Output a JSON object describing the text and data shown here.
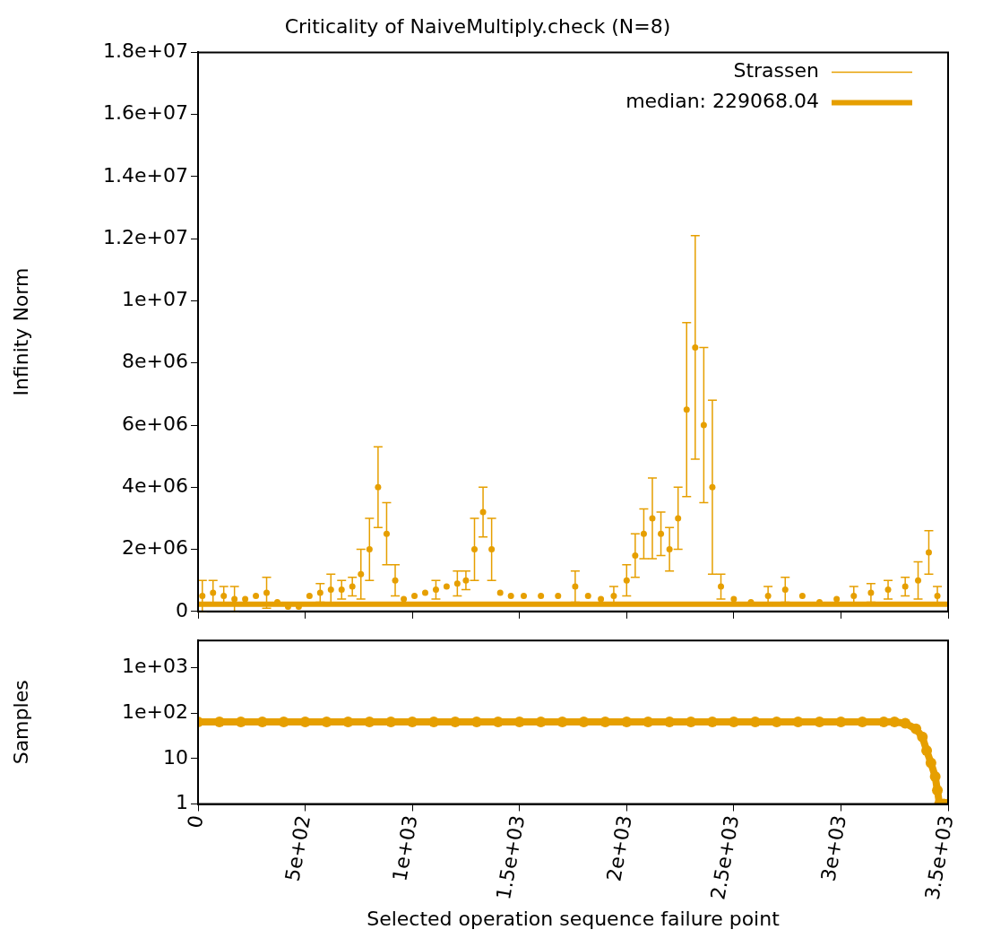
{
  "chart_data": [
    {
      "type": "scatter",
      "title": "Criticality of NaiveMultiply.check (N=8)",
      "ylabel": "Infinity Norm",
      "xlim": [
        0,
        3500
      ],
      "ylim": [
        0,
        18000000
      ],
      "xticks": [
        {
          "value": 0,
          "label": null
        },
        {
          "value": 500,
          "label": null
        },
        {
          "value": 1000,
          "label": null
        },
        {
          "value": 1500,
          "label": null
        },
        {
          "value": 2000,
          "label": null
        },
        {
          "value": 2500,
          "label": null
        },
        {
          "value": 3000,
          "label": null
        },
        {
          "value": 3500,
          "label": null
        }
      ],
      "yticks": [
        0,
        {
          "value": 2000000,
          "label": "2e+06"
        },
        {
          "value": 4000000,
          "label": "4e+06"
        },
        {
          "value": 6000000,
          "label": "6e+06"
        },
        {
          "value": 8000000,
          "label": "8e+06"
        },
        {
          "value": 10000000,
          "label": "1e+07"
        },
        {
          "value": 12000000,
          "label": "1.2e+07"
        },
        {
          "value": 14000000,
          "label": "1.4e+07"
        },
        {
          "value": 16000000,
          "label": "1.6e+07"
        },
        {
          "value": 18000000,
          "label": "1.8e+07"
        }
      ],
      "tick_labels": "y",
      "grid": false,
      "legend": "top right",
      "series": [
        {
          "name": "Strassen",
          "marker": "circle",
          "color": "#e69f00",
          "x": [
            20,
            70,
            120,
            170,
            220,
            270,
            320,
            370,
            420,
            470,
            520,
            570,
            620,
            670,
            720,
            760,
            800,
            840,
            880,
            920,
            960,
            1010,
            1060,
            1110,
            1160,
            1210,
            1250,
            1290,
            1330,
            1370,
            1410,
            1460,
            1520,
            1600,
            1680,
            1760,
            1820,
            1880,
            1940,
            2000,
            2040,
            2080,
            2120,
            2160,
            2200,
            2240,
            2280,
            2320,
            2360,
            2400,
            2440,
            2500,
            2580,
            2660,
            2740,
            2820,
            2900,
            2980,
            3060,
            3140,
            3220,
            3300,
            3360,
            3410,
            3450
          ],
          "values": [
            500000,
            600000,
            500000,
            400000,
            400000,
            500000,
            600000,
            300000,
            150000,
            150000,
            500000,
            600000,
            700000,
            700000,
            800000,
            1200000,
            2000000,
            4000000,
            2500000,
            1000000,
            400000,
            500000,
            600000,
            700000,
            800000,
            900000,
            1000000,
            2000000,
            3200000,
            2000000,
            600000,
            500000,
            500000,
            500000,
            500000,
            800000,
            500000,
            400000,
            500000,
            1000000,
            1800000,
            2500000,
            3000000,
            2500000,
            2000000,
            3000000,
            6500000,
            8500000,
            6000000,
            4000000,
            800000,
            400000,
            300000,
            500000,
            700000,
            500000,
            300000,
            400000,
            500000,
            600000,
            700000,
            800000,
            1000000,
            1900000,
            500000
          ],
          "errors": [
            500000,
            400000,
            300000,
            400000,
            null,
            null,
            500000,
            null,
            null,
            null,
            null,
            300000,
            500000,
            300000,
            300000,
            800000,
            1000000,
            1300000,
            1000000,
            500000,
            null,
            null,
            null,
            300000,
            null,
            400000,
            300000,
            1000000,
            800000,
            1000000,
            null,
            null,
            null,
            null,
            null,
            500000,
            null,
            null,
            300000,
            500000,
            700000,
            800000,
            1300000,
            700000,
            700000,
            1000000,
            2800000,
            3600000,
            2500000,
            2800000,
            400000,
            null,
            null,
            300000,
            400000,
            null,
            null,
            null,
            300000,
            300000,
            300000,
            300000,
            600000,
            700000,
            300000
          ]
        },
        {
          "name": "median: 229068.04",
          "type": "line",
          "marker": "none",
          "color": "#e69f00",
          "x": [
            0,
            3500
          ],
          "values": [
            229068.04,
            229068.04
          ]
        }
      ]
    },
    {
      "type": "line",
      "xlabel": "Selected operation sequence failure point",
      "ylabel": "Samples",
      "log": "y",
      "xlim": [
        0,
        3500
      ],
      "ylim": [
        1,
        4000
      ],
      "xticks": [
        0,
        {
          "value": 500,
          "label": "5e+02"
        },
        {
          "value": 1000,
          "label": "1e+03"
        },
        {
          "value": 1500,
          "label": "1.5e+03"
        },
        {
          "value": 2000,
          "label": "2e+03"
        },
        {
          "value": 2500,
          "label": "2.5e+03"
        },
        {
          "value": 3000,
          "label": "3e+03"
        },
        {
          "value": 3500,
          "label": "3.5e+03"
        }
      ],
      "yticks": [
        1,
        10,
        {
          "value": 100,
          "label": "1e+02"
        },
        {
          "value": 1000,
          "label": "1e+03"
        }
      ],
      "grid": false,
      "legend": false,
      "series": [
        {
          "marker": "circle",
          "color": "#e69f00",
          "x": [
            0,
            100,
            200,
            300,
            400,
            500,
            600,
            700,
            800,
            900,
            1000,
            1100,
            1200,
            1300,
            1400,
            1500,
            1600,
            1700,
            1800,
            1900,
            2000,
            2100,
            2200,
            2300,
            2400,
            2500,
            2600,
            2700,
            2800,
            2900,
            3000,
            3100,
            3200,
            3250,
            3300,
            3350,
            3380,
            3400,
            3420,
            3440,
            3450,
            3460,
            3480,
            3500
          ],
          "values": [
            64,
            64,
            64,
            64,
            64,
            64,
            64,
            64,
            64,
            64,
            64,
            64,
            64,
            64,
            64,
            64,
            64,
            64,
            64,
            64,
            64,
            64,
            64,
            64,
            64,
            64,
            64,
            64,
            64,
            64,
            64,
            64,
            64,
            64,
            60,
            45,
            30,
            15,
            8,
            4,
            2,
            1,
            1,
            1
          ]
        }
      ]
    }
  ]
}
